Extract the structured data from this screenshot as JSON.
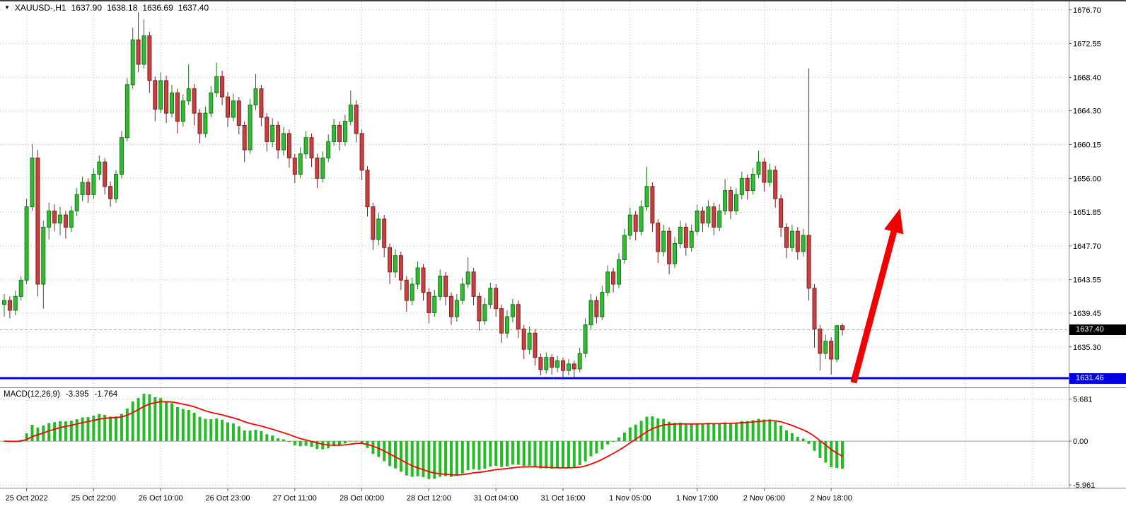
{
  "header": {
    "dropdown_icon": "▼",
    "symbol_period": "XAUUSD-,H1",
    "open": "1637.90",
    "high": "1638.18",
    "low": "1636.69",
    "close": "1637.40"
  },
  "macd_panel": {
    "label": "MACD(12,26,9)",
    "macd_value": "-3.395",
    "signal_value": "-1.764"
  },
  "price_axis": {
    "current_tag": {
      "text": "1637.40",
      "bg": "#000000",
      "fg": "#ffffff"
    },
    "line_tag": {
      "text": "1631.46",
      "bg": "#0000e0",
      "fg": "#ffffff"
    }
  },
  "chart_data": {
    "type": "candlestick",
    "symbol": "XAUUSD-",
    "timeframe": "H1",
    "grid": "dashed",
    "y_axis": {
      "labels": [
        "1676.70",
        "1672.55",
        "1668.40",
        "1664.30",
        "1660.15",
        "1656.00",
        "1651.85",
        "1647.70",
        "1643.55",
        "1639.45",
        "1635.30"
      ],
      "range": [
        1630.4,
        1677.9
      ]
    },
    "x_axis": {
      "labels": [
        "25 Oct 2022",
        "25 Oct 22:00",
        "26 Oct 10:00",
        "26 Oct 23:00",
        "27 Oct 11:00",
        "28 Oct 00:00",
        "28 Oct 12:00",
        "31 Oct 04:00",
        "31 Oct 16:00",
        "1 Nov 05:00",
        "1 Nov 17:00",
        "2 Nov 06:00",
        "2 Nov 18:00"
      ],
      "label_candle_indices": [
        4,
        16,
        28,
        40,
        52,
        64,
        76,
        88,
        100,
        112,
        124,
        136,
        148
      ]
    },
    "indicator": {
      "type": "MACD",
      "fast": 12,
      "slow": 26,
      "signal": 9,
      "current_macd": -3.395,
      "current_signal": -1.764,
      "scale": {
        "max_label": "5.681",
        "zero_label": "0.00",
        "min_label": "-5.961",
        "vmax": 6.9,
        "vmin": -6.3
      }
    },
    "annotations": {
      "horizontal_line": {
        "price": 1631.46,
        "color": "#0000e0"
      },
      "arrow_up": {
        "x1_index": 152,
        "price1": 1630.9,
        "x2_index": 160.3,
        "price2": 1652.3
      }
    },
    "colors": {
      "up": "#33bb33",
      "up_edge": "#157815",
      "down": "#c84040",
      "down_edge": "#7e1f1f",
      "grid": "#bdbdbd",
      "histogram": "#25bb25",
      "signal": "#ff0000",
      "support_line": "#0000e0",
      "arrow": "#f20000"
    },
    "candles": [
      [
        1640.5,
        1641.8,
        1639.0,
        1641.0
      ],
      [
        1641.0,
        1641.5,
        1638.8,
        1639.8
      ],
      [
        1639.8,
        1642.2,
        1639.2,
        1641.5
      ],
      [
        1641.5,
        1644.0,
        1641.0,
        1643.5
      ],
      [
        1643.5,
        1653.5,
        1643.0,
        1652.5
      ],
      [
        1652.5,
        1660.2,
        1652.0,
        1658.5
      ],
      [
        1658.5,
        1659.5,
        1641.5,
        1643.0
      ],
      [
        1643.0,
        1650.8,
        1640.0,
        1650.0
      ],
      [
        1650.0,
        1653.0,
        1648.5,
        1652.0
      ],
      [
        1652.0,
        1652.8,
        1649.5,
        1650.5
      ],
      [
        1650.5,
        1652.5,
        1649.0,
        1651.5
      ],
      [
        1651.5,
        1652.0,
        1648.6,
        1650.0
      ],
      [
        1650.0,
        1652.6,
        1649.4,
        1652.0
      ],
      [
        1652.0,
        1654.8,
        1651.4,
        1654.0
      ],
      [
        1654.0,
        1656.2,
        1653.2,
        1655.5
      ],
      [
        1655.5,
        1656.0,
        1653.0,
        1654.0
      ],
      [
        1654.0,
        1657.2,
        1653.5,
        1656.5
      ],
      [
        1656.5,
        1658.8,
        1655.8,
        1658.0
      ],
      [
        1658.0,
        1658.5,
        1654.0,
        1655.0
      ],
      [
        1655.0,
        1655.6,
        1652.5,
        1653.5
      ],
      [
        1653.5,
        1657.0,
        1653.0,
        1656.5
      ],
      [
        1656.5,
        1661.8,
        1656.0,
        1661.0
      ],
      [
        1661.0,
        1668.3,
        1660.5,
        1667.5
      ],
      [
        1667.5,
        1674.5,
        1667.0,
        1673.0
      ],
      [
        1673.0,
        1676.4,
        1669.0,
        1670.0
      ],
      [
        1670.0,
        1675.5,
        1669.5,
        1673.5
      ],
      [
        1673.5,
        1674.0,
        1666.5,
        1668.0
      ],
      [
        1668.0,
        1668.5,
        1663.0,
        1664.5
      ],
      [
        1664.5,
        1669.0,
        1664.0,
        1668.0
      ],
      [
        1668.0,
        1668.6,
        1662.8,
        1664.0
      ],
      [
        1664.0,
        1667.5,
        1663.5,
        1666.5
      ],
      [
        1666.5,
        1667.0,
        1661.5,
        1663.0
      ],
      [
        1663.0,
        1666.3,
        1662.4,
        1665.5
      ],
      [
        1665.5,
        1670.0,
        1665.0,
        1667.0
      ],
      [
        1667.0,
        1667.6,
        1662.5,
        1664.0
      ],
      [
        1664.0,
        1664.5,
        1660.3,
        1661.5
      ],
      [
        1661.5,
        1664.8,
        1661.0,
        1664.0
      ],
      [
        1664.0,
        1667.3,
        1663.5,
        1666.5
      ],
      [
        1666.5,
        1670.2,
        1666.0,
        1668.5
      ],
      [
        1668.5,
        1669.2,
        1665.0,
        1666.0
      ],
      [
        1666.0,
        1666.6,
        1662.3,
        1663.5
      ],
      [
        1663.5,
        1666.4,
        1663.0,
        1665.5
      ],
      [
        1665.5,
        1666.0,
        1661.4,
        1662.5
      ],
      [
        1662.5,
        1663.0,
        1658.0,
        1659.5
      ],
      [
        1659.5,
        1665.8,
        1659.0,
        1665.0
      ],
      [
        1665.0,
        1668.8,
        1664.4,
        1667.0
      ],
      [
        1667.0,
        1667.5,
        1662.4,
        1663.5
      ],
      [
        1663.5,
        1664.0,
        1659.3,
        1660.5
      ],
      [
        1660.5,
        1663.4,
        1659.8,
        1662.5
      ],
      [
        1662.5,
        1663.0,
        1658.4,
        1659.5
      ],
      [
        1659.5,
        1662.3,
        1658.8,
        1661.5
      ],
      [
        1661.5,
        1662.0,
        1657.3,
        1658.5
      ],
      [
        1658.5,
        1659.0,
        1655.4,
        1656.5
      ],
      [
        1656.5,
        1659.8,
        1656.0,
        1659.0
      ],
      [
        1659.0,
        1661.8,
        1658.4,
        1661.0
      ],
      [
        1661.0,
        1661.5,
        1657.4,
        1658.5
      ],
      [
        1658.5,
        1659.0,
        1654.8,
        1656.0
      ],
      [
        1656.0,
        1659.3,
        1655.5,
        1658.5
      ],
      [
        1658.5,
        1661.4,
        1658.0,
        1660.5
      ],
      [
        1660.5,
        1663.3,
        1660.0,
        1662.5
      ],
      [
        1662.5,
        1663.0,
        1659.4,
        1660.5
      ],
      [
        1660.5,
        1663.8,
        1660.0,
        1663.0
      ],
      [
        1663.0,
        1666.8,
        1662.5,
        1665.0
      ],
      [
        1665.0,
        1665.6,
        1660.4,
        1661.5
      ],
      [
        1661.5,
        1662.0,
        1655.8,
        1657.0
      ],
      [
        1657.0,
        1657.5,
        1651.3,
        1652.5
      ],
      [
        1652.5,
        1653.0,
        1647.2,
        1648.5
      ],
      [
        1648.5,
        1651.8,
        1647.8,
        1651.0
      ],
      [
        1651.0,
        1651.5,
        1646.3,
        1647.5
      ],
      [
        1647.5,
        1648.0,
        1643.0,
        1644.5
      ],
      [
        1644.5,
        1647.3,
        1643.8,
        1646.5
      ],
      [
        1646.5,
        1647.0,
        1642.3,
        1643.5
      ],
      [
        1643.5,
        1644.0,
        1639.6,
        1641.0
      ],
      [
        1641.0,
        1643.8,
        1640.4,
        1643.0
      ],
      [
        1643.0,
        1645.8,
        1642.4,
        1645.0
      ],
      [
        1645.0,
        1645.5,
        1641.0,
        1642.0
      ],
      [
        1642.0,
        1642.5,
        1638.2,
        1639.5
      ],
      [
        1639.5,
        1642.3,
        1639.0,
        1641.5
      ],
      [
        1641.5,
        1644.8,
        1641.0,
        1644.0
      ],
      [
        1644.0,
        1644.5,
        1640.4,
        1641.5
      ],
      [
        1641.5,
        1642.0,
        1638.0,
        1639.0
      ],
      [
        1639.0,
        1641.8,
        1638.4,
        1641.0
      ],
      [
        1641.0,
        1643.8,
        1640.5,
        1643.0
      ],
      [
        1643.0,
        1646.3,
        1642.5,
        1644.5
      ],
      [
        1644.5,
        1645.0,
        1640.4,
        1641.5
      ],
      [
        1641.5,
        1642.0,
        1637.3,
        1638.5
      ],
      [
        1638.5,
        1641.3,
        1638.0,
        1640.5
      ],
      [
        1640.5,
        1643.2,
        1640.0,
        1642.5
      ],
      [
        1642.5,
        1643.0,
        1639.0,
        1640.0
      ],
      [
        1640.0,
        1640.5,
        1635.8,
        1637.0
      ],
      [
        1637.0,
        1639.8,
        1636.4,
        1639.0
      ],
      [
        1639.0,
        1641.2,
        1638.3,
        1640.5
      ],
      [
        1640.5,
        1641.0,
        1636.4,
        1637.5
      ],
      [
        1637.5,
        1638.0,
        1633.8,
        1635.0
      ],
      [
        1635.0,
        1637.8,
        1634.4,
        1637.0
      ],
      [
        1637.0,
        1637.5,
        1633.0,
        1634.0
      ],
      [
        1634.0,
        1634.5,
        1631.8,
        1632.5
      ],
      [
        1632.5,
        1634.6,
        1632.0,
        1634.0
      ],
      [
        1634.0,
        1634.4,
        1631.9,
        1632.8
      ],
      [
        1632.8,
        1634.2,
        1632.2,
        1633.6
      ],
      [
        1633.6,
        1634.0,
        1631.6,
        1632.4
      ],
      [
        1632.4,
        1633.8,
        1631.8,
        1633.2
      ],
      [
        1633.2,
        1633.6,
        1631.5,
        1632.6
      ],
      [
        1632.6,
        1635.2,
        1632.2,
        1634.5
      ],
      [
        1634.5,
        1638.8,
        1634.0,
        1638.0
      ],
      [
        1638.0,
        1641.8,
        1637.5,
        1641.0
      ],
      [
        1641.0,
        1641.5,
        1638.2,
        1639.0
      ],
      [
        1639.0,
        1642.8,
        1638.6,
        1642.0
      ],
      [
        1642.0,
        1645.3,
        1641.5,
        1644.5
      ],
      [
        1644.5,
        1645.0,
        1642.0,
        1643.0
      ],
      [
        1643.0,
        1646.8,
        1642.5,
        1646.0
      ],
      [
        1646.0,
        1649.8,
        1645.5,
        1649.0
      ],
      [
        1649.0,
        1652.4,
        1648.5,
        1651.5
      ],
      [
        1651.5,
        1652.0,
        1648.4,
        1649.5
      ],
      [
        1649.5,
        1653.3,
        1649.0,
        1652.5
      ],
      [
        1652.5,
        1657.4,
        1652.0,
        1655.0
      ],
      [
        1655.0,
        1655.5,
        1649.4,
        1650.5
      ],
      [
        1650.5,
        1651.0,
        1645.6,
        1647.0
      ],
      [
        1647.0,
        1650.3,
        1646.4,
        1649.5
      ],
      [
        1649.5,
        1650.0,
        1644.2,
        1645.5
      ],
      [
        1645.5,
        1648.8,
        1645.0,
        1648.0
      ],
      [
        1648.0,
        1650.8,
        1647.4,
        1650.0
      ],
      [
        1650.0,
        1650.5,
        1646.5,
        1647.5
      ],
      [
        1647.5,
        1650.3,
        1647.0,
        1649.5
      ],
      [
        1649.5,
        1652.8,
        1649.0,
        1652.0
      ],
      [
        1652.0,
        1652.5,
        1649.4,
        1650.5
      ],
      [
        1650.5,
        1653.3,
        1650.0,
        1652.5
      ],
      [
        1652.5,
        1653.0,
        1649.0,
        1650.0
      ],
      [
        1650.0,
        1652.8,
        1649.5,
        1652.0
      ],
      [
        1652.0,
        1655.9,
        1651.5,
        1654.5
      ],
      [
        1654.5,
        1655.0,
        1651.0,
        1652.0
      ],
      [
        1652.0,
        1654.8,
        1651.5,
        1654.0
      ],
      [
        1654.0,
        1656.8,
        1653.4,
        1656.0
      ],
      [
        1656.0,
        1656.5,
        1653.4,
        1654.5
      ],
      [
        1654.5,
        1657.3,
        1654.0,
        1656.5
      ],
      [
        1656.5,
        1659.4,
        1656.0,
        1658.0
      ],
      [
        1658.0,
        1658.5,
        1654.4,
        1655.5
      ],
      [
        1655.5,
        1657.8,
        1655.0,
        1657.0
      ],
      [
        1657.0,
        1657.5,
        1652.4,
        1653.5
      ],
      [
        1653.5,
        1654.0,
        1648.8,
        1650.0
      ],
      [
        1650.0,
        1650.5,
        1646.2,
        1647.5
      ],
      [
        1647.5,
        1650.3,
        1647.0,
        1649.5
      ],
      [
        1649.5,
        1650.0,
        1646.0,
        1647.0
      ],
      [
        1647.0,
        1649.8,
        1646.4,
        1649.0
      ],
      [
        1649.0,
        1669.5,
        1641.0,
        1642.5
      ],
      [
        1642.5,
        1643.0,
        1635.2,
        1637.5
      ],
      [
        1637.5,
        1638.0,
        1632.4,
        1634.5
      ],
      [
        1634.5,
        1636.8,
        1633.8,
        1636.0
      ],
      [
        1636.0,
        1636.5,
        1631.9,
        1633.8
      ],
      [
        1633.8,
        1638.0,
        1633.4,
        1637.9
      ],
      [
        1637.9,
        1638.18,
        1636.69,
        1637.4
      ]
    ]
  }
}
